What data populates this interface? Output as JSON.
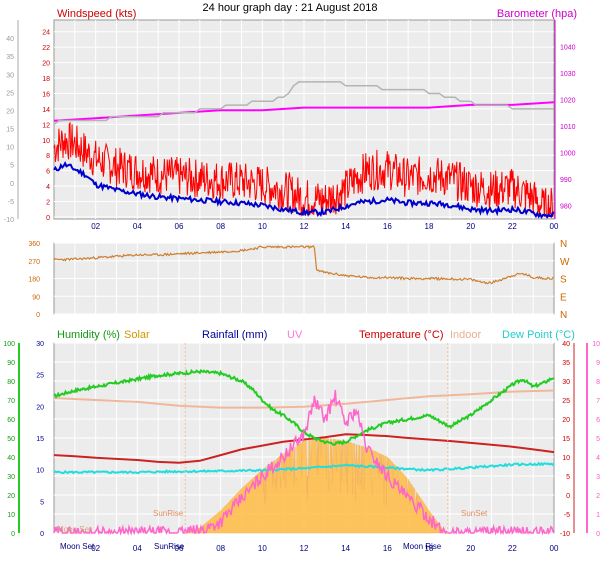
{
  "page": {
    "title": "24 hour graph day : 21 August 2018"
  },
  "colors": {
    "background": "#ffffff",
    "panel": "#ececec",
    "grid": "#ffffff",
    "wind_avg": "#0000cc",
    "wind_gust": "#ff0000",
    "barometer": "#ff00ff",
    "wind_gray": "#b4b4b4",
    "direction": "#cc8033",
    "humidity": "#22cc22",
    "solar": "#ffbb44",
    "uv": "#ff66cc",
    "temperature": "#cc2222",
    "indoor": "#f0b89a",
    "dewpoint": "#22dddd",
    "rain_axis": "#000080",
    "hour_labels": "#000080"
  },
  "chart_data": [
    {
      "id": "wind",
      "type": "line",
      "legend": {
        "left_label": "Windspeed (kts)",
        "right_label": "Barometer (hpa)"
      },
      "x": {
        "unit": "hour",
        "range": [
          0,
          24
        ],
        "tick_labels": [
          "02",
          "04",
          "06",
          "08",
          "10",
          "12",
          "14",
          "16",
          "18",
          "20",
          "22",
          "00"
        ]
      },
      "axes": {
        "outer_left": {
          "range": [
            -10,
            45
          ],
          "ticks": [
            -10,
            -5,
            0,
            5,
            10,
            15,
            20,
            25,
            30,
            35,
            40
          ]
        },
        "inner_left": {
          "range": [
            0,
            25
          ],
          "ticks": [
            0,
            2,
            4,
            6,
            8,
            10,
            12,
            14,
            16,
            18,
            20,
            22,
            24
          ]
        },
        "right": {
          "range": [
            975,
            1050
          ],
          "ticks": [
            980,
            990,
            1000,
            1010,
            1020,
            1030,
            1040
          ]
        }
      },
      "series": [
        {
          "name": "Barometer (hpa)",
          "axis": "right",
          "x": [
            0,
            2,
            4,
            6,
            8,
            10,
            12,
            14,
            16,
            18,
            20,
            22,
            24
          ],
          "values": [
            1012,
            1013,
            1014,
            1015,
            1016,
            1016,
            1017,
            1017,
            1017,
            1017,
            1018,
            1018,
            1019
          ]
        },
        {
          "axis": "inner_left",
          "x": [
            0,
            1,
            2,
            3,
            4,
            5,
            6,
            7,
            8,
            9,
            10,
            11,
            11.5,
            12,
            13,
            14,
            15,
            16,
            17,
            18,
            18.5,
            19,
            20,
            20.5,
            21,
            22,
            23,
            24
          ],
          "values": [
            12.2,
            12.4,
            12.6,
            12.8,
            13.0,
            13.2,
            13.4,
            13.8,
            14.2,
            14.6,
            15.0,
            15.4,
            17.0,
            17.6,
            17.5,
            17.2,
            17.0,
            16.6,
            16.6,
            16.2,
            15.8,
            15.4,
            14.8,
            14.6,
            14.4,
            14.2,
            14.2,
            14.0
          ]
        },
        {
          "name": "Windspeed (kts)",
          "axis": "inner_left",
          "x": [
            0,
            0.5,
            1,
            1.5,
            2,
            3,
            4,
            5,
            6,
            7,
            8,
            9,
            10,
            11,
            12,
            13,
            14,
            14.5,
            15,
            16,
            17,
            18,
            19,
            20,
            21,
            22,
            23,
            23.5,
            24
          ],
          "values": [
            9,
            10,
            9.5,
            8.5,
            7.5,
            6.5,
            6.0,
            5.5,
            5.2,
            5.0,
            4.8,
            4.6,
            4.2,
            3.5,
            2.5,
            2.2,
            3.6,
            5.0,
            6.0,
            6.2,
            5.0,
            5.5,
            5.0,
            4.0,
            3.5,
            3.8,
            2.5,
            1.2,
            1.5
          ]
        },
        {
          "axis": "inner_left",
          "x": [
            0,
            0.5,
            1,
            1.5,
            2,
            3,
            4,
            5,
            6,
            7,
            8,
            9,
            10,
            11,
            12,
            13,
            14,
            14.5,
            15,
            16,
            17,
            18,
            19,
            20,
            21,
            22,
            23,
            23.5,
            24
          ],
          "values": [
            6.0,
            6.8,
            6.2,
            5.5,
            4.2,
            3.5,
            3.0,
            2.6,
            2.4,
            2.2,
            2.0,
            1.8,
            1.5,
            1.0,
            0.6,
            0.6,
            1.4,
            1.8,
            2.0,
            2.2,
            1.8,
            1.8,
            1.6,
            1.0,
            0.8,
            1.0,
            0.5,
            0.2,
            0.3
          ]
        }
      ]
    },
    {
      "id": "direction",
      "type": "line",
      "x": {
        "unit": "hour",
        "range": [
          0,
          24
        ]
      },
      "axes": {
        "left": {
          "range": [
            0,
            360
          ],
          "ticks": [
            0,
            90,
            180,
            270,
            360
          ]
        },
        "right_labels": [
          "N",
          "W",
          "S",
          "E",
          "N"
        ]
      },
      "series": [
        {
          "axis": "left",
          "x": [
            0,
            1,
            2,
            3,
            4,
            5,
            6,
            7,
            8,
            9,
            9.5,
            10,
            11,
            12,
            12.5,
            12.6,
            13,
            14,
            15,
            16,
            17,
            18,
            19,
            20,
            20.5,
            21,
            22,
            22.5,
            23,
            24
          ],
          "values": [
            275,
            278,
            285,
            292,
            300,
            300,
            305,
            310,
            315,
            322,
            330,
            340,
            340,
            340,
            340,
            225,
            210,
            195,
            185,
            185,
            180,
            180,
            178,
            175,
            162,
            158,
            195,
            205,
            185,
            180
          ]
        }
      ]
    },
    {
      "id": "environment",
      "type": "line",
      "legend": {
        "humidity": "Humidity (%)",
        "solar": "Solar",
        "rainfall": "Rainfall (mm)",
        "uv": "UV",
        "temperature": "Temperature (°C)",
        "indoor": "Indoor",
        "dewpoint": "Dew Point (°C)"
      },
      "x": {
        "unit": "hour",
        "range": [
          0,
          24
        ],
        "tick_labels": [
          "02",
          "04",
          "06",
          "08",
          "10",
          "12",
          "14",
          "16",
          "18",
          "20",
          "22",
          "00"
        ]
      },
      "annotations": [
        "Moon Set",
        "SunRise",
        "SunRise",
        "Moon Rise",
        "SunSet"
      ],
      "axes": {
        "humidity": {
          "range": [
            0,
            100
          ],
          "ticks": [
            0,
            10,
            20,
            30,
            40,
            50,
            60,
            70,
            80,
            90,
            100
          ]
        },
        "rainfall": {
          "range": [
            0,
            30
          ],
          "ticks": [
            0,
            5,
            10,
            15,
            20,
            25,
            30
          ]
        },
        "temperature": {
          "range": [
            -10,
            40
          ],
          "ticks": [
            -10,
            -5,
            0,
            5,
            10,
            15,
            20,
            25,
            30,
            35,
            40
          ]
        },
        "uv": {
          "range": [
            0,
            10
          ],
          "ticks": [
            0,
            1,
            2,
            3,
            4,
            5,
            6,
            7,
            8,
            9,
            10
          ]
        }
      },
      "series": [
        {
          "name": "Humidity (%)",
          "axis": "humidity",
          "x": [
            0,
            1,
            2,
            3,
            4,
            5,
            6,
            7,
            8,
            9,
            9.5,
            10,
            10.5,
            11,
            11.5,
            12,
            12.5,
            13,
            13.5,
            14,
            15,
            16,
            17,
            18,
            18.5,
            19,
            20,
            21,
            22,
            22.5,
            23,
            23.5,
            24
          ],
          "values": [
            72,
            75,
            77,
            79,
            81,
            83,
            84,
            85,
            84,
            80,
            76,
            70,
            65,
            62,
            58,
            53,
            50,
            48,
            47,
            48,
            54,
            58,
            60,
            62,
            59,
            56,
            62,
            70,
            78,
            81,
            77,
            79,
            82
          ]
        },
        {
          "name": "Temperature (°C)",
          "axis": "temperature",
          "x": [
            0,
            1,
            2,
            3,
            4,
            5,
            6,
            7,
            8,
            9,
            10,
            11,
            12,
            13,
            14,
            15,
            16,
            17,
            18,
            19,
            20,
            21,
            22,
            23,
            24
          ],
          "values": [
            10.5,
            10.2,
            9.8,
            9.5,
            9.2,
            8.7,
            8.5,
            9.0,
            10.5,
            12.0,
            13.0,
            14.0,
            14.6,
            15.2,
            16.0,
            15.8,
            15.5,
            15.0,
            14.6,
            14.2,
            13.7,
            13.2,
            12.7,
            12.0,
            11.3
          ]
        },
        {
          "name": "Indoor",
          "axis": "temperature",
          "x": [
            0,
            2,
            4,
            6,
            8,
            10,
            12,
            14,
            16,
            18,
            20,
            22,
            24
          ],
          "values": [
            25.5,
            25.0,
            24.5,
            23.5,
            23.0,
            23.0,
            23.2,
            24.0,
            25.0,
            26.0,
            26.5,
            27.2,
            27.5
          ]
        },
        {
          "name": "Dew Point (°C)",
          "axis": "temperature",
          "x": [
            0,
            2,
            4,
            6,
            8,
            10,
            12,
            14,
            16,
            18,
            20,
            22,
            24
          ],
          "values": [
            6.0,
            6.0,
            6.0,
            6.2,
            6.3,
            6.5,
            7.0,
            7.8,
            7.2,
            6.5,
            7.2,
            8.0,
            8.2
          ]
        },
        {
          "name": "UV",
          "axis": "uv",
          "x": [
            0,
            6,
            7,
            8,
            9,
            10,
            11,
            12,
            12.5,
            13,
            13.5,
            14,
            14.5,
            15,
            16,
            17,
            18,
            18.5,
            19,
            24
          ],
          "values": [
            0,
            0,
            0.1,
            0.6,
            1.8,
            3.0,
            4.0,
            5.2,
            7.0,
            6.0,
            7.2,
            5.8,
            6.5,
            4.5,
            3.0,
            1.8,
            0.8,
            0.2,
            0,
            0
          ]
        },
        {
          "name": "Solar",
          "axis": "rainfall",
          "x": [
            0,
            6.3,
            7,
            8,
            9,
            10,
            11,
            12,
            13,
            14,
            15,
            16,
            17,
            18,
            18.8,
            24
          ],
          "values": [
            0,
            0,
            0.8,
            3.5,
            7.0,
            10.0,
            12.5,
            14.5,
            15.0,
            14.5,
            13.5,
            12.0,
            8.5,
            3.5,
            0,
            0
          ]
        }
      ]
    }
  ]
}
